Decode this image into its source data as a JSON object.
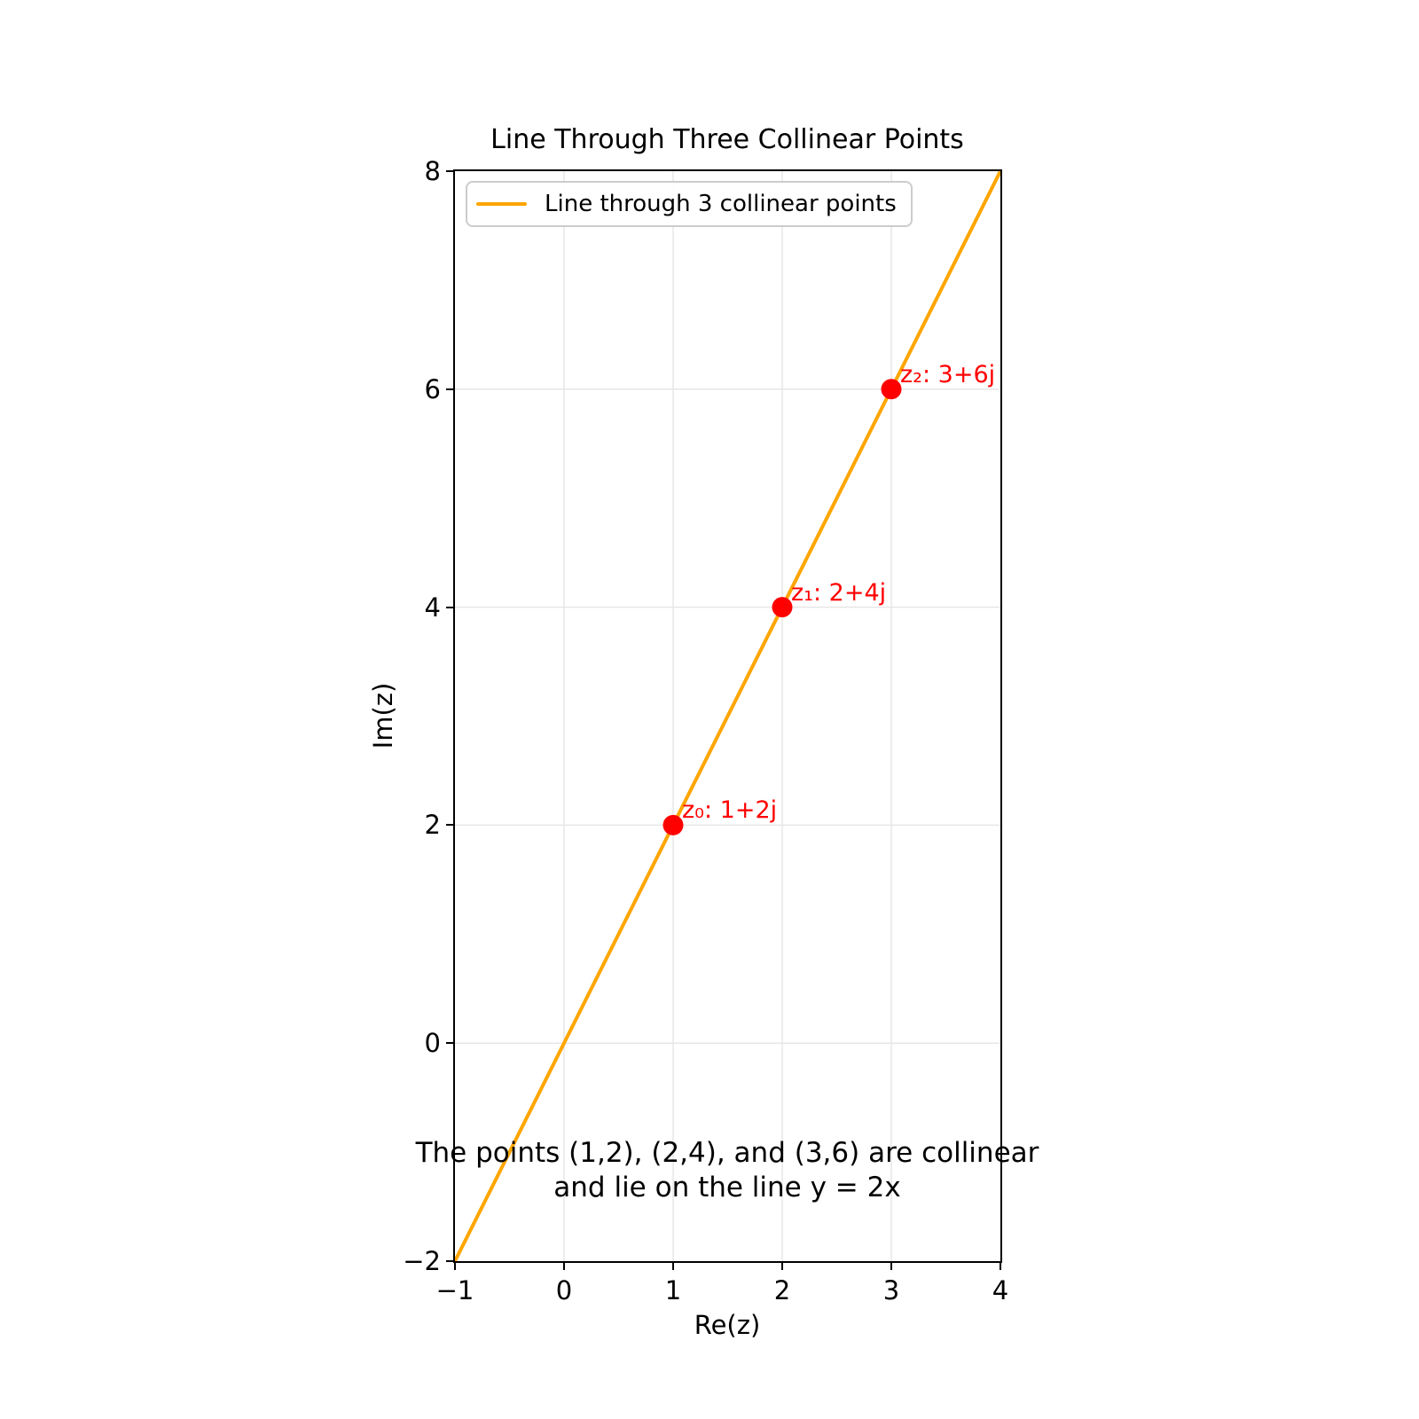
{
  "title": "Line Through Three Collinear Points",
  "colors": {
    "line": "#FFA500",
    "points": "#FF0000",
    "grid": "#e7e7e7",
    "spine": "#000000",
    "legend_border": "#cccccc",
    "text": "#000000"
  },
  "legend": {
    "position": "upper left",
    "entries": [
      {
        "label": "Line through 3 collinear points",
        "color": "#FFA500"
      }
    ]
  },
  "chart_data": {
    "type": "line",
    "title": "Line Through Three Collinear Points",
    "xlabel": "Re(z)",
    "ylabel": "Im(z)",
    "xlim": [
      -1,
      4
    ],
    "ylim": [
      -2,
      8
    ],
    "xticks": [
      -1,
      0,
      1,
      2,
      3,
      4
    ],
    "xtick_labels": [
      "−1",
      "0",
      "1",
      "2",
      "3",
      "4"
    ],
    "yticks": [
      -2,
      0,
      2,
      4,
      6,
      8
    ],
    "ytick_labels": [
      "−2",
      "0",
      "2",
      "4",
      "6",
      "8"
    ],
    "grid": true,
    "legend_position": "upper left",
    "series": [
      {
        "name": "Line through 3 collinear points",
        "type": "line",
        "color": "#FFA500",
        "equation": "y = 2x",
        "x": [
          -1,
          4
        ],
        "y": [
          -2,
          8
        ]
      }
    ],
    "points": [
      {
        "x": 1,
        "y": 2,
        "label": "z₀: 1+2j",
        "color": "#FF0000"
      },
      {
        "x": 2,
        "y": 4,
        "label": "z₁: 2+4j",
        "color": "#FF0000"
      },
      {
        "x": 3,
        "y": 6,
        "label": "z₂: 3+6j",
        "color": "#FF0000"
      }
    ],
    "annotation": {
      "line1": "The points (1,2), (2,4), and (3,6) are collinear",
      "line2": "and lie on the line y = 2x"
    }
  }
}
